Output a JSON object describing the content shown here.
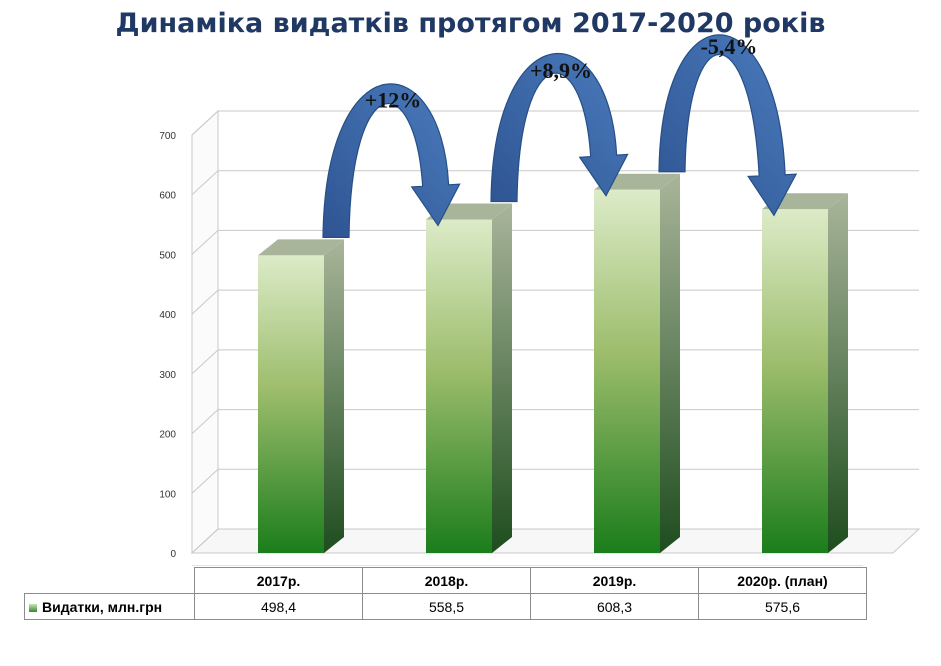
{
  "chart_data": {
    "type": "bar",
    "title": "Динаміка видатків протягом 2017-2020 років",
    "categories": [
      "2017р.",
      "2018р.",
      "2019р.",
      "2020р. (план)"
    ],
    "series": [
      {
        "name": "Видатки, млн.грн",
        "values": [
          498.4,
          558.5,
          608.3,
          575.6
        ],
        "value_labels": [
          "498,4",
          "558,5",
          "608,3",
          "575,6"
        ]
      }
    ],
    "yticks": [
      "0",
      "100",
      "200",
      "300",
      "400",
      "500",
      "600",
      "700"
    ],
    "ylim": [
      0,
      700
    ],
    "grid": true,
    "annotations": [
      "+12%",
      "+8,9%",
      "-5,4%"
    ],
    "legend": "data table below chart",
    "colors": {
      "bar_top": "#dcebc8",
      "bar_mid": "#9dbd6c",
      "bar_bottom": "#1b7d1b",
      "bar_side_top": "#a9b59a",
      "bar_side_bottom": "#1e4d1e",
      "arrow_fill": "#4a7bbd",
      "arrow_dark": "#2f5592",
      "title": "#1f3864"
    }
  }
}
